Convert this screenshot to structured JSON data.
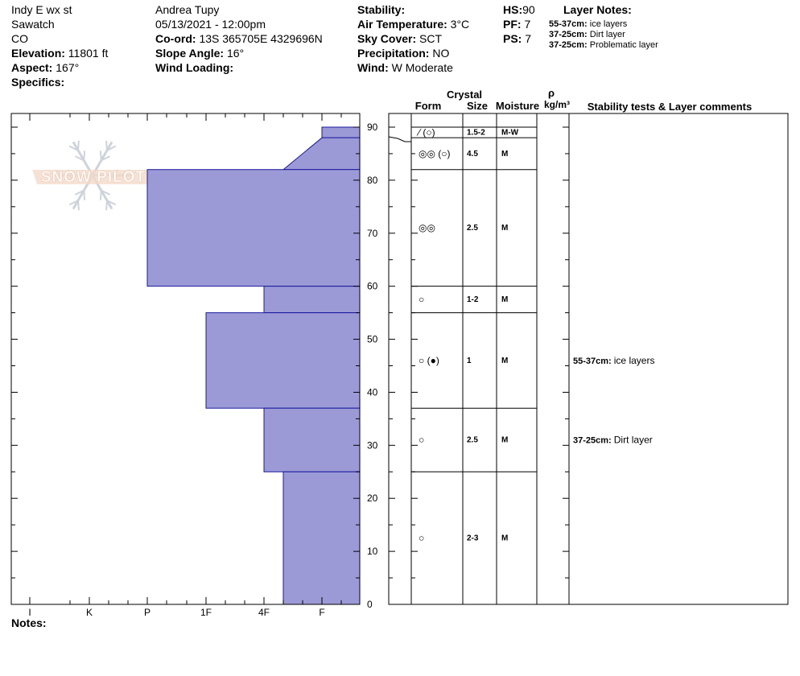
{
  "header": {
    "location": "Indy E wx st",
    "range": "Sawatch",
    "state": "CO",
    "elevation_label": "Elevation:",
    "elevation": "11801 ft",
    "aspect_label": "Aspect:",
    "aspect": "167°",
    "specifics_label": "Specifics:",
    "observer": "Andrea Tupy",
    "datetime": "05/13/2021 - 12:00pm",
    "coord_label": "Co-ord:",
    "coord": "13S 365705E 4329696N",
    "slope_label": "Slope Angle:",
    "slope": "16°",
    "wind_loading_label": "Wind Loading:",
    "stability_label": "Stability:",
    "air_temp_label": "Air Temperature:",
    "air_temp": "3°C",
    "sky_label": "Sky Cover:",
    "sky": "SCT",
    "precip_label": "Precipitation:",
    "precip": "NO",
    "wind_label": "Wind:",
    "wind": "W Moderate",
    "hs_label": "HS:",
    "hs": "90",
    "pf_label": "PF:",
    "pf": "7",
    "ps_label": "PS:",
    "ps": "7"
  },
  "layer_notes": {
    "title": "Layer Notes:",
    "items": [
      {
        "range": "55-37cm:",
        "text": "ice layers"
      },
      {
        "range": "37-25cm:",
        "text": "Dirt layer"
      },
      {
        "range": "37-25cm:",
        "text": "Problematic layer"
      }
    ]
  },
  "watermark": "SNOW PILOT",
  "columns": {
    "crystal": "Crystal",
    "form": "Form",
    "size": "Size",
    "moisture": "Moisture",
    "rho": "ρ",
    "density_unit": "kg/m³",
    "comments": "Stability tests & Layer comments"
  },
  "notes_label": "Notes:",
  "chart_data": {
    "type": "bar",
    "orientation": "horizontal-step",
    "y_axis": {
      "range": [
        0,
        90
      ],
      "ticks": [
        0,
        10,
        20,
        30,
        40,
        50,
        60,
        70,
        80,
        90
      ],
      "minor_step": 5
    },
    "x_axis": {
      "categories": [
        "I",
        "K",
        "P",
        "1F",
        "4F",
        "F"
      ],
      "hardness_levels": [
        "I",
        "K+",
        "K",
        "K-",
        "P+",
        "P",
        "P-",
        "1F+",
        "1F",
        "1F-",
        "4F+",
        "4F",
        "4F-",
        "F+",
        "F",
        "F-"
      ]
    },
    "hardness_profile": [
      {
        "top": 90,
        "bottom": 88,
        "hardness": "F"
      },
      {
        "top": 88,
        "bottom": 82,
        "hardness_top": "F",
        "hardness_bottom": "4F-"
      },
      {
        "top": 82,
        "bottom": 60,
        "hardness": "P"
      },
      {
        "top": 60,
        "bottom": 55,
        "hardness": "4F"
      },
      {
        "top": 55,
        "bottom": 37,
        "hardness": "1F"
      },
      {
        "top": 37,
        "bottom": 25,
        "hardness": "4F"
      },
      {
        "top": 25,
        "bottom": 0,
        "hardness": "4F-"
      }
    ],
    "layers": [
      {
        "top": 90,
        "bottom": 88,
        "form": "⁄ (○)",
        "size": "1.5-2",
        "moisture": "M-W"
      },
      {
        "top": 88,
        "bottom": 82,
        "form": "◎◎ (○)",
        "size": "4.5",
        "moisture": "M"
      },
      {
        "top": 82,
        "bottom": 60,
        "form": "◎◎",
        "size": "2.5",
        "moisture": "M"
      },
      {
        "top": 60,
        "bottom": 55,
        "form": "○",
        "size": "1-2",
        "moisture": "M"
      },
      {
        "top": 55,
        "bottom": 37,
        "form": "○ (●)",
        "size": "1",
        "moisture": "M"
      },
      {
        "top": 37,
        "bottom": 25,
        "form": "○",
        "size": "2.5",
        "moisture": "M"
      },
      {
        "top": 25,
        "bottom": 0,
        "form": "○",
        "size": "2-3",
        "moisture": "M"
      }
    ],
    "comments": [
      {
        "depth": 46,
        "range": "55-37cm:",
        "text": "ice layers"
      },
      {
        "depth": 31,
        "range": "37-25cm:",
        "text": "Dirt layer"
      }
    ],
    "colors": {
      "fill": "#9c9ad6",
      "edge": "#1a1aa0",
      "watermark": "#f3d6c4"
    }
  }
}
